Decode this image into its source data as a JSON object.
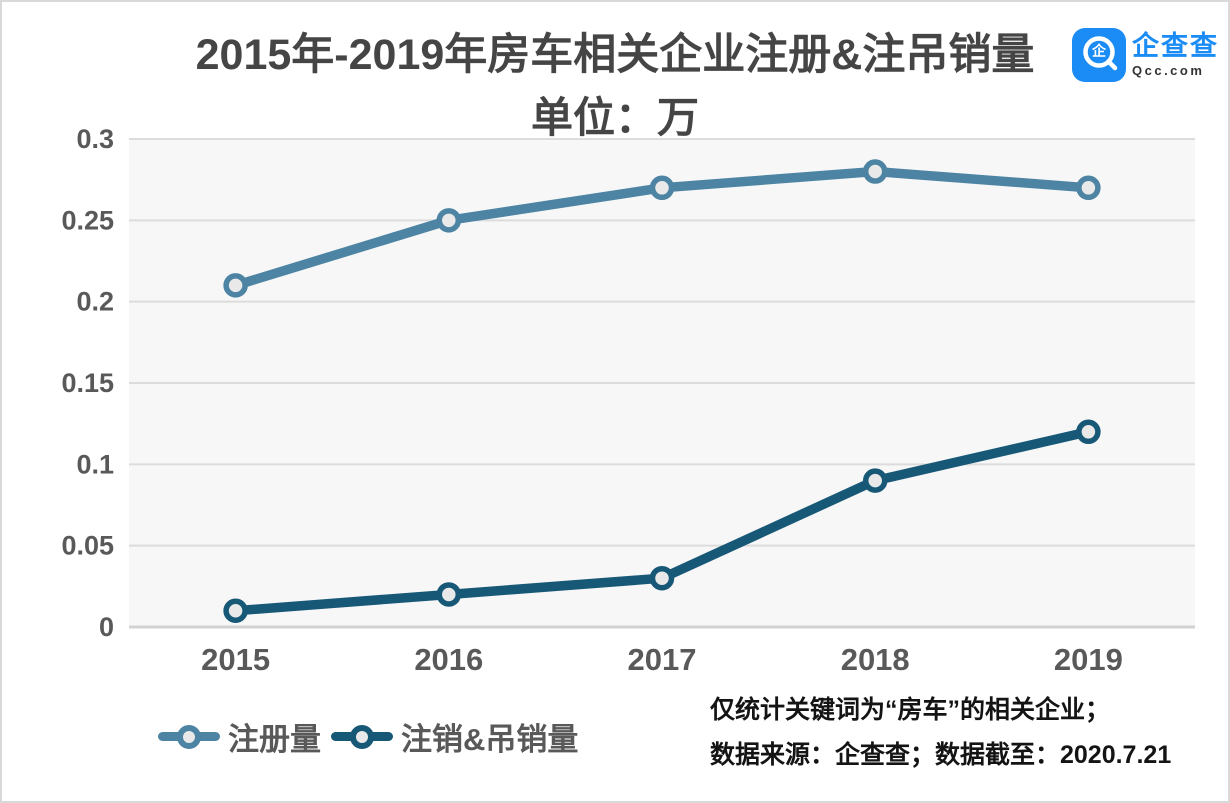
{
  "header": {
    "title_line1": "2015年-2019年房车相关企业注册&注吊销量",
    "title_line2": "单位：万"
  },
  "logo": {
    "name": "企查查",
    "domain": "Qcc.com",
    "icon_glyph": "企",
    "brand_color": "#1b8cf5"
  },
  "chart_data": {
    "type": "line",
    "title": "2015年-2019年房车相关企业注册&注吊销量",
    "subtitle": "单位：万",
    "categories": [
      "2015",
      "2016",
      "2017",
      "2018",
      "2019"
    ],
    "series": [
      {
        "name": "注册量",
        "color": "#4d84a3",
        "values": [
          0.21,
          0.25,
          0.27,
          0.28,
          0.27
        ]
      },
      {
        "name": "注销&吊销量",
        "color": "#175877",
        "values": [
          0.01,
          0.02,
          0.03,
          0.09,
          0.12
        ]
      }
    ],
    "xlabel": "",
    "ylabel": "",
    "ylim": [
      0,
      0.3
    ],
    "yticks": [
      0,
      0.05,
      0.1,
      0.15,
      0.2,
      0.25,
      0.3
    ],
    "ytick_labels": [
      "0",
      "0.05",
      "0.1",
      "0.15",
      "0.2",
      "0.25",
      "0.3"
    ],
    "grid": true,
    "legend_position": "bottom-left",
    "plot_bg": "#f7f7f7",
    "grid_color": "#dcdcdc",
    "axis_color": "#d2d2d2",
    "tick_color": "#595959",
    "marker_fill": "#e9e9e9"
  },
  "footnotes": {
    "line1": "仅统计关键词为“房车”的相关企业；",
    "line2": "数据来源：企查查；数据截至：2020.7.21"
  }
}
